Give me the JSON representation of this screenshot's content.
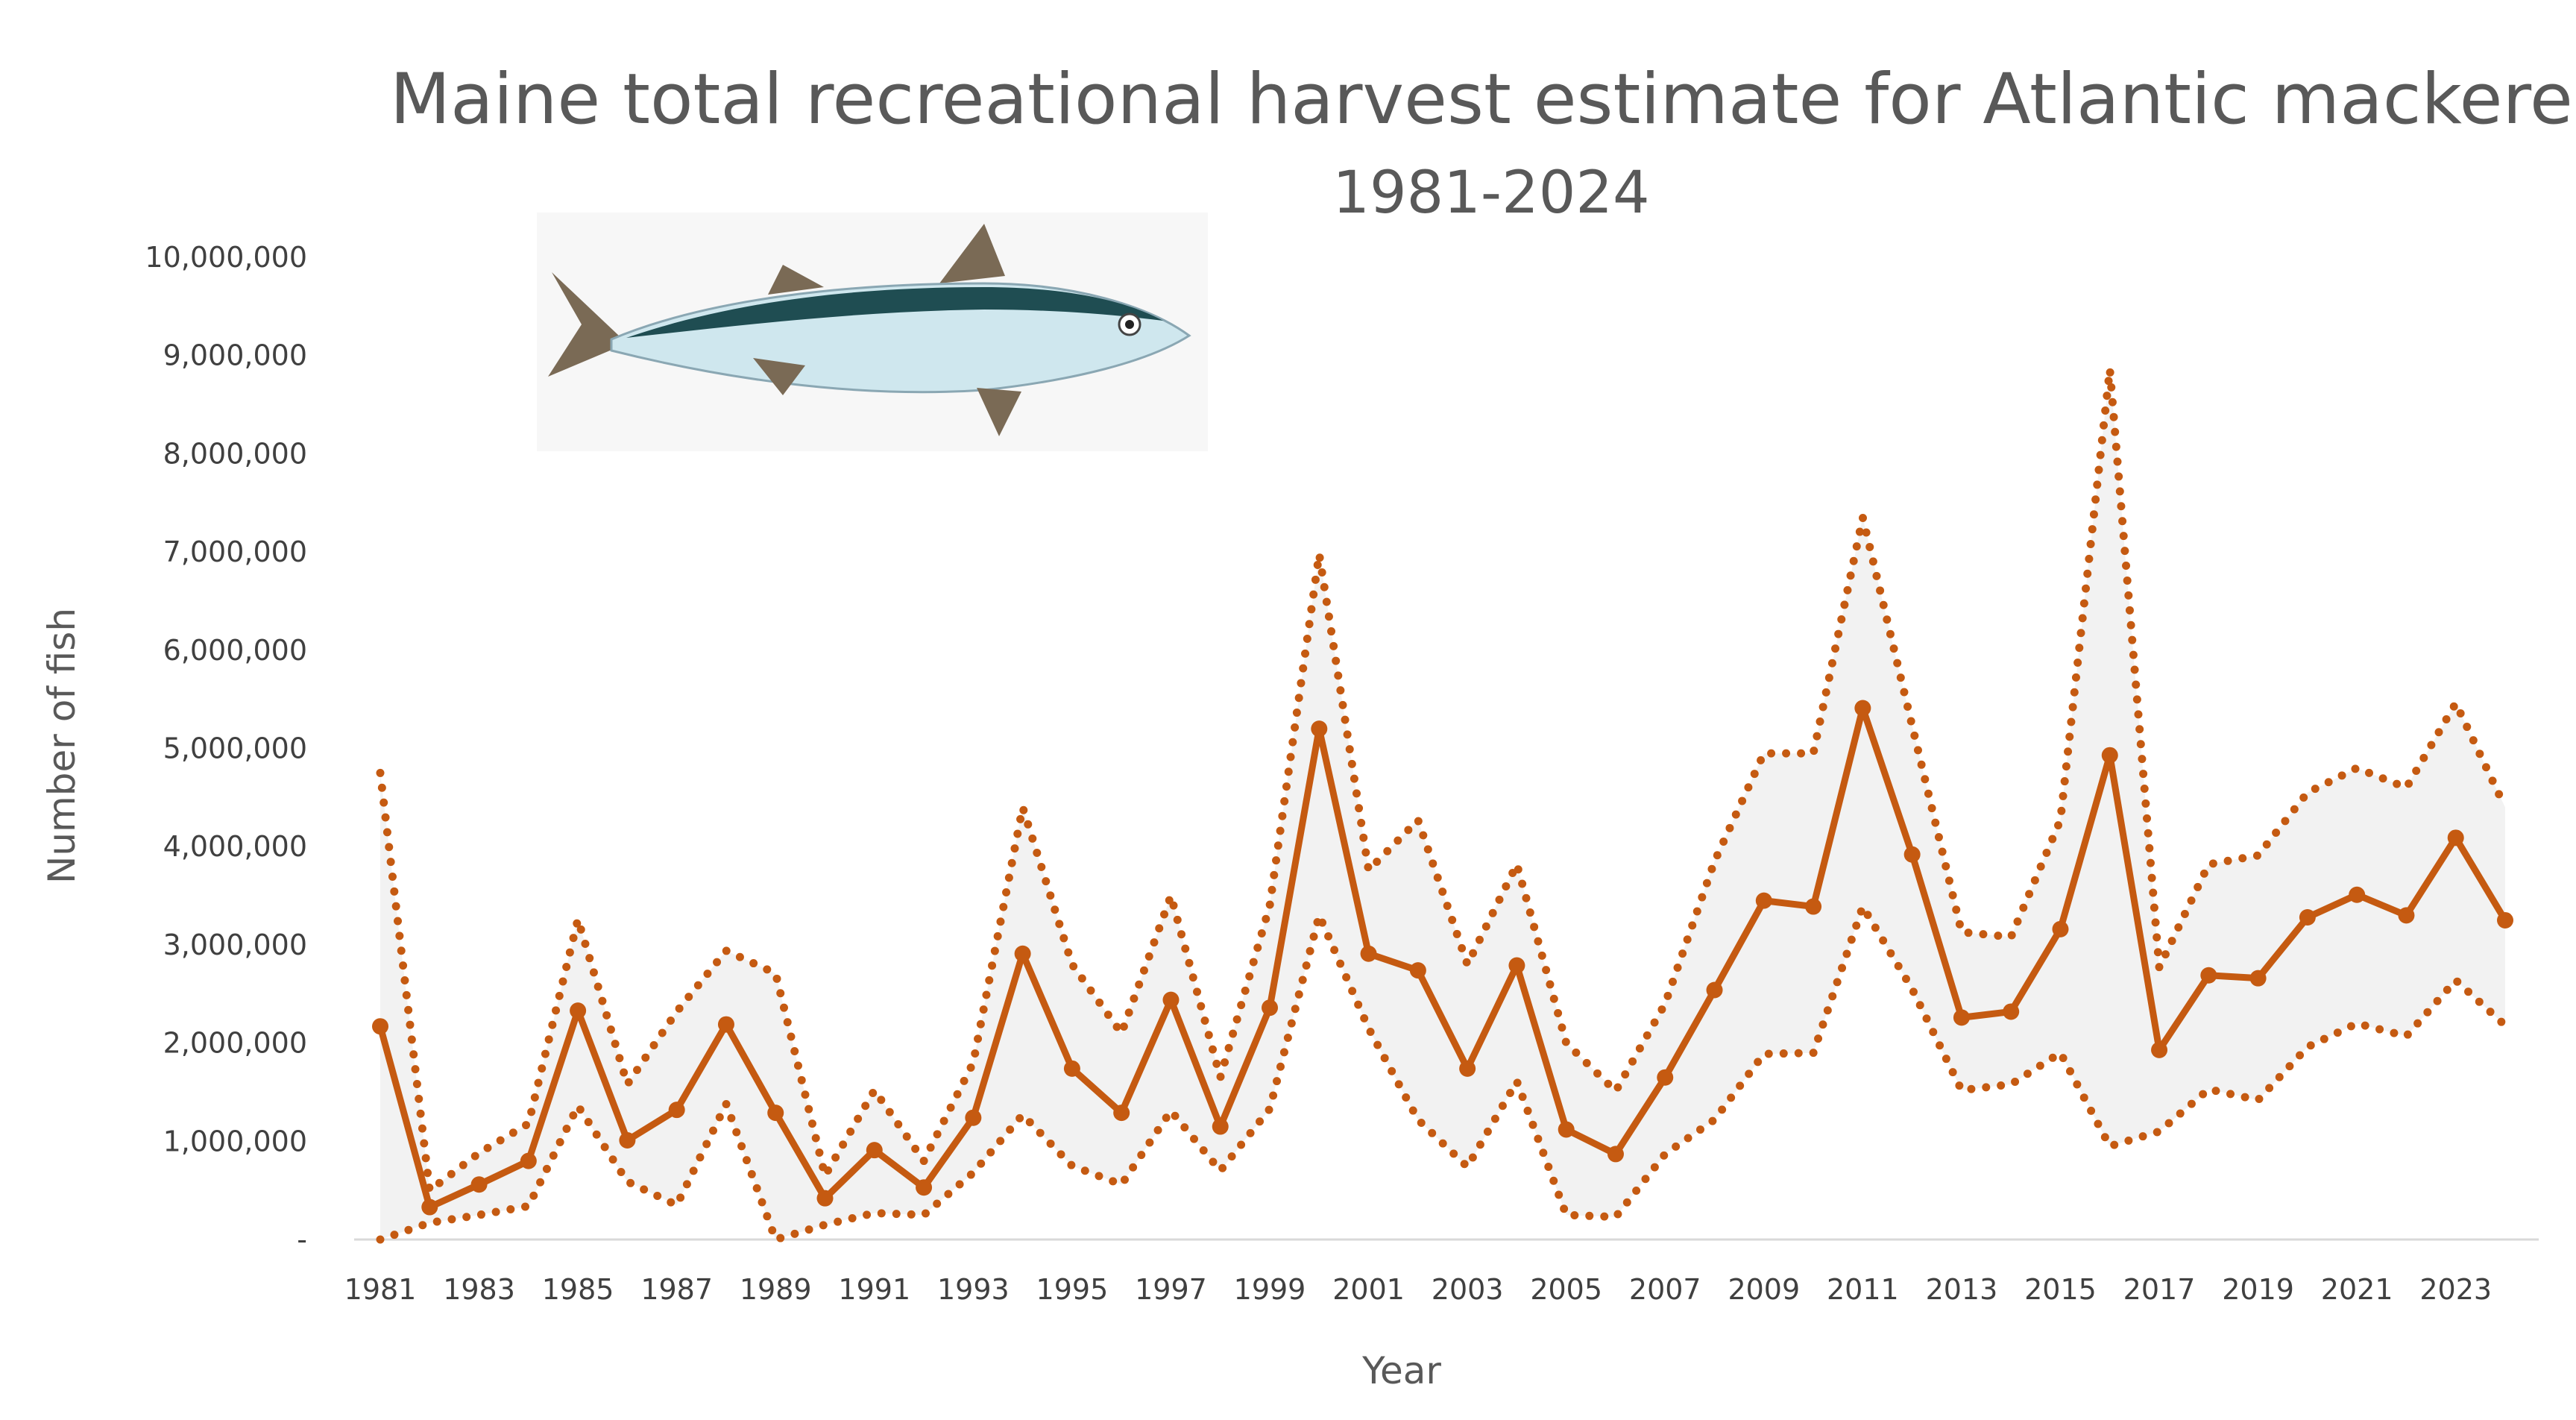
{
  "chart_data": {
    "type": "line",
    "title": "Maine total recreational harvest estimate for Atlantic mackerel",
    "subtitle": "1981-2024",
    "xlabel": "Year",
    "ylabel": "Number of fish",
    "ylim": [
      0,
      10000000
    ],
    "y_ticks": [
      0,
      1000000,
      2000000,
      3000000,
      4000000,
      5000000,
      6000000,
      7000000,
      8000000,
      9000000,
      10000000
    ],
    "y_tick_labels": [
      "-",
      "1,000,000",
      "2,000,000",
      "3,000,000",
      "4,000,000",
      "5,000,000",
      "6,000,000",
      "7,000,000",
      "8,000,000",
      "9,000,000",
      "10,000,000"
    ],
    "x": [
      1981,
      1982,
      1983,
      1984,
      1985,
      1986,
      1987,
      1988,
      1989,
      1990,
      1991,
      1992,
      1993,
      1994,
      1995,
      1996,
      1997,
      1998,
      1999,
      2000,
      2001,
      2002,
      2003,
      2004,
      2005,
      2006,
      2007,
      2008,
      2009,
      2010,
      2011,
      2012,
      2013,
      2014,
      2015,
      2016,
      2017,
      2018,
      2019,
      2020,
      2021,
      2022,
      2023,
      2024
    ],
    "x_tick_labels": [
      "1981",
      "1983",
      "1985",
      "1987",
      "1989",
      "1991",
      "1993",
      "1995",
      "1997",
      "1999",
      "2001",
      "2003",
      "2005",
      "2007",
      "2009",
      "2011",
      "2013",
      "2015",
      "2017",
      "2019",
      "2021",
      "2023"
    ],
    "series": [
      {
        "style": "solid-markers",
        "values": [
          2170000,
          330000,
          560000,
          800000,
          2330000,
          1010000,
          1320000,
          2190000,
          1290000,
          420000,
          910000,
          530000,
          1240000,
          2910000,
          1740000,
          1290000,
          2440000,
          1150000,
          2360000,
          5200000,
          2910000,
          2740000,
          1740000,
          2790000,
          1120000,
          870000,
          1650000,
          2540000,
          3450000,
          3390000,
          5410000,
          3920000,
          2260000,
          2320000,
          3160000,
          4930000,
          1930000,
          2690000,
          2660000,
          3280000,
          3510000,
          3300000,
          4090000,
          3250000
        ]
      },
      {
        "style": "dotted-upper",
        "values": [
          4750000,
          500000,
          880000,
          1180000,
          3260000,
          1580000,
          2320000,
          2940000,
          2710000,
          650000,
          1520000,
          800000,
          1800000,
          4400000,
          2800000,
          2100000,
          3500000,
          1650000,
          3400000,
          6980000,
          3760000,
          4270000,
          2800000,
          3820000,
          2000000,
          1510000,
          2400000,
          3850000,
          4950000,
          4950000,
          7350000,
          5230000,
          3130000,
          3080000,
          4270000,
          8860000,
          2770000,
          3820000,
          3910000,
          4550000,
          4800000,
          4600000,
          5460000,
          4400000
        ]
      },
      {
        "style": "dotted-lower",
        "values": [
          0,
          170000,
          250000,
          340000,
          1360000,
          590000,
          350000,
          1380000,
          0,
          150000,
          270000,
          250000,
          680000,
          1270000,
          750000,
          560000,
          1310000,
          700000,
          1330000,
          3300000,
          2150000,
          1220000,
          740000,
          1610000,
          250000,
          230000,
          870000,
          1220000,
          1890000,
          1900000,
          3390000,
          2550000,
          1520000,
          1580000,
          1900000,
          950000,
          1100000,
          1530000,
          1420000,
          1960000,
          2200000,
          2070000,
          2640000,
          2180000
        ]
      }
    ],
    "confidence_band": "between dotted-lower and dotted-upper",
    "colors": {
      "line": "#C55A11",
      "band": "#F2F2F2",
      "axis": "#D9D9D9",
      "text": "#595959"
    },
    "image": {
      "description_icon": "atlantic-mackerel-fish-icon"
    }
  }
}
